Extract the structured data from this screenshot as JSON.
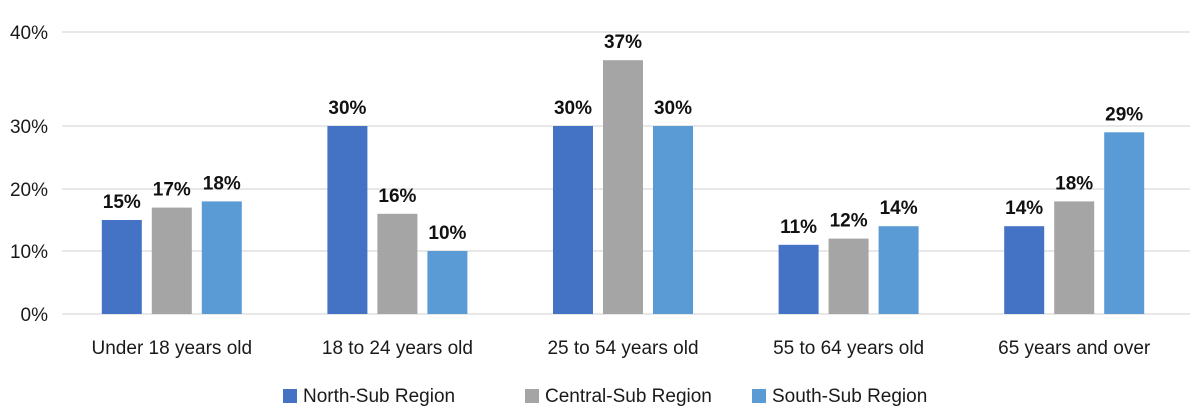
{
  "chart_data": {
    "type": "bar",
    "categories": [
      "Under 18 years old",
      "18 to 24 years old",
      "25 to 54 years old",
      "55 to 64 years old",
      "65 years and over"
    ],
    "series": [
      {
        "name": "North-Sub Region",
        "color": "#4472C4",
        "values": [
          15,
          30,
          30,
          11,
          14
        ]
      },
      {
        "name": "Central-Sub Region",
        "color": "#A5A5A5",
        "values": [
          17,
          16,
          37,
          12,
          18
        ]
      },
      {
        "name": "South-Sub Region",
        "color": "#5B9BD5",
        "values": [
          18,
          10,
          30,
          14,
          29
        ]
      }
    ],
    "value_suffix": "%",
    "y_ticks": [
      {
        "value": 0,
        "label": "0%"
      },
      {
        "value": 10,
        "label": "10%"
      },
      {
        "value": 20,
        "label": "20%"
      },
      {
        "value": 30,
        "label": "30%"
      },
      {
        "value": 40,
        "label": "40%"
      }
    ],
    "ylim": [
      0,
      40
    ],
    "title": "",
    "xlabel": "",
    "ylabel": "",
    "grid": true,
    "legend": "bottom"
  }
}
